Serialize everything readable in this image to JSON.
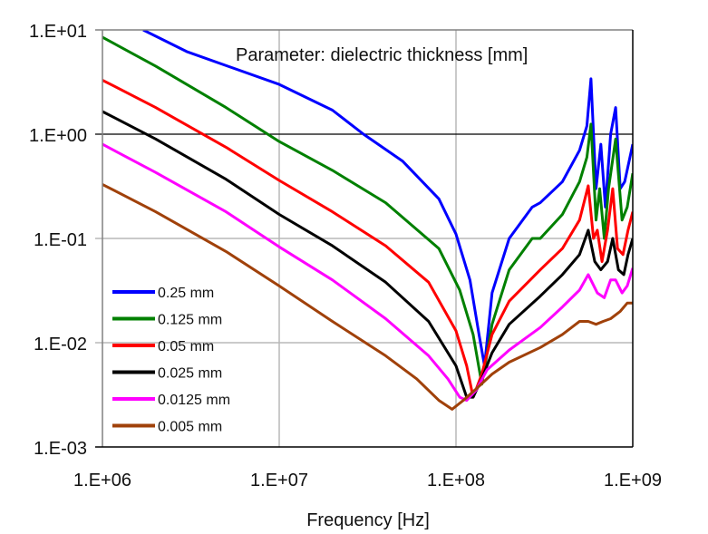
{
  "chart_data": {
    "type": "line",
    "title": "",
    "annotation": "Parameter: dielectric thickness [mm]",
    "xlabel": "Frequency [Hz]",
    "ylabel": "",
    "x_scale": "log",
    "y_scale": "log",
    "xlim": [
      1000000,
      1000000000
    ],
    "ylim": [
      0.001,
      10
    ],
    "x_ticks": [
      "1.E+06",
      "1.E+07",
      "1.E+08",
      "1.E+09"
    ],
    "y_ticks": [
      "1.E+01",
      "1.E+00",
      "1.E-01",
      "1.E-02",
      "1.E-03"
    ],
    "grid": true,
    "legend_position": "bottom-left",
    "series": [
      {
        "name": "0.25 mm",
        "color": "#0000ff",
        "x": [
          1700000.0,
          3000000.0,
          10000000.0,
          20000000.0,
          30000000.0,
          50000000.0,
          80000000.0,
          100000000.0,
          120000000.0,
          135000000.0,
          145000000.0,
          160000000.0,
          200000000.0,
          270000000.0,
          300000000.0,
          400000000.0,
          500000000.0,
          550000000.0,
          580000000.0,
          620000000.0,
          660000000.0,
          700000000.0,
          750000000.0,
          800000000.0,
          850000000.0,
          900000000.0,
          1000000000.0
        ],
        "y": [
          10,
          6.2,
          3.0,
          1.7,
          1.0,
          0.55,
          0.24,
          0.11,
          0.04,
          0.012,
          0.006,
          0.03,
          0.1,
          0.2,
          0.22,
          0.35,
          0.7,
          1.2,
          3.4,
          0.3,
          0.8,
          0.2,
          1.0,
          1.8,
          0.3,
          0.35,
          0.8
        ]
      },
      {
        "name": "0.125 mm",
        "color": "#008000",
        "x": [
          1000000.0,
          2000000.0,
          5000000.0,
          10000000.0,
          20000000.0,
          40000000.0,
          80000000.0,
          105000000.0,
          125000000.0,
          140000000.0,
          160000000.0,
          200000000.0,
          270000000.0,
          300000000.0,
          400000000.0,
          500000000.0,
          550000000.0,
          580000000.0,
          620000000.0,
          650000000.0,
          690000000.0,
          730000000.0,
          800000000.0,
          870000000.0,
          930000000.0,
          1000000000.0
        ],
        "y": [
          8.5,
          4.5,
          1.8,
          0.85,
          0.45,
          0.22,
          0.08,
          0.032,
          0.012,
          0.004,
          0.015,
          0.05,
          0.1,
          0.1,
          0.17,
          0.35,
          0.6,
          1.25,
          0.15,
          0.3,
          0.1,
          0.3,
          0.9,
          0.15,
          0.2,
          0.42
        ]
      },
      {
        "name": "0.05 mm",
        "color": "#ff0000",
        "x": [
          1000000.0,
          2000000.0,
          5000000.0,
          10000000.0,
          20000000.0,
          40000000.0,
          70000000.0,
          100000000.0,
          115000000.0,
          125000000.0,
          140000000.0,
          160000000.0,
          200000000.0,
          300000000.0,
          400000000.0,
          500000000.0,
          560000000.0,
          600000000.0,
          630000000.0,
          670000000.0,
          720000000.0,
          770000000.0,
          820000000.0,
          880000000.0,
          940000000.0,
          1000000000.0
        ],
        "y": [
          3.3,
          1.8,
          0.75,
          0.36,
          0.18,
          0.085,
          0.038,
          0.013,
          0.006,
          0.003,
          0.005,
          0.012,
          0.025,
          0.05,
          0.08,
          0.15,
          0.32,
          0.1,
          0.12,
          0.06,
          0.12,
          0.3,
          0.08,
          0.07,
          0.12,
          0.18
        ]
      },
      {
        "name": "0.025 mm",
        "color": "#000000",
        "x": [
          1000000.0,
          2000000.0,
          5000000.0,
          10000000.0,
          20000000.0,
          40000000.0,
          70000000.0,
          100000000.0,
          115000000.0,
          125000000.0,
          140000000.0,
          160000000.0,
          200000000.0,
          300000000.0,
          400000000.0,
          500000000.0,
          560000000.0,
          610000000.0,
          660000000.0,
          720000000.0,
          770000000.0,
          830000000.0,
          890000000.0,
          940000000.0,
          1000000000.0
        ],
        "y": [
          1.65,
          0.9,
          0.37,
          0.17,
          0.085,
          0.038,
          0.016,
          0.006,
          0.003,
          0.003,
          0.0045,
          0.008,
          0.015,
          0.028,
          0.045,
          0.07,
          0.12,
          0.06,
          0.05,
          0.06,
          0.1,
          0.05,
          0.045,
          0.07,
          0.1
        ]
      },
      {
        "name": "0.0125 mm",
        "color": "#ff00ff",
        "x": [
          1000000.0,
          2000000.0,
          5000000.0,
          10000000.0,
          20000000.0,
          40000000.0,
          70000000.0,
          90000000.0,
          105000000.0,
          115000000.0,
          130000000.0,
          150000000.0,
          200000000.0,
          300000000.0,
          400000000.0,
          500000000.0,
          560000000.0,
          630000000.0,
          690000000.0,
          750000000.0,
          800000000.0,
          870000000.0,
          930000000.0,
          1000000000.0
        ],
        "y": [
          0.8,
          0.43,
          0.18,
          0.083,
          0.04,
          0.017,
          0.0075,
          0.0045,
          0.003,
          0.0028,
          0.0035,
          0.0055,
          0.0085,
          0.014,
          0.022,
          0.032,
          0.045,
          0.03,
          0.027,
          0.04,
          0.04,
          0.03,
          0.035,
          0.052
        ]
      },
      {
        "name": "0.005 mm",
        "color": "#a0410a",
        "x": [
          1000000.0,
          2000000.0,
          5000000.0,
          10000000.0,
          20000000.0,
          40000000.0,
          60000000.0,
          80000000.0,
          95000000.0,
          110000000.0,
          130000000.0,
          160000000.0,
          200000000.0,
          300000000.0,
          400000000.0,
          500000000.0,
          560000000.0,
          620000000.0,
          680000000.0,
          750000000.0,
          850000000.0,
          930000000.0,
          1000000000.0
        ],
        "y": [
          0.33,
          0.18,
          0.075,
          0.035,
          0.016,
          0.0075,
          0.0045,
          0.0028,
          0.0023,
          0.0028,
          0.0036,
          0.005,
          0.0065,
          0.009,
          0.012,
          0.016,
          0.016,
          0.015,
          0.016,
          0.017,
          0.02,
          0.024,
          0.024
        ]
      }
    ]
  }
}
